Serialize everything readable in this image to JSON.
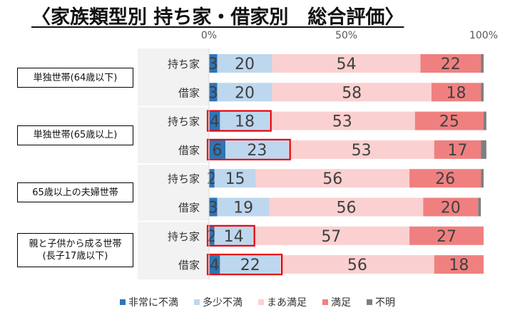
{
  "title": "〈家族類型別 持ち家・借家別　総合評価〉",
  "chart_data": {
    "type": "bar",
    "orientation": "horizontal",
    "stacked": true,
    "percent": true,
    "xlim": [
      0,
      100
    ],
    "x_ticks": [
      "0%",
      "50%",
      "100%"
    ],
    "groups": [
      {
        "label": "単独世帯(64歳以下)",
        "rows": [
          0,
          1
        ]
      },
      {
        "label": "単独世帯(65歳以上)",
        "rows": [
          2,
          3
        ]
      },
      {
        "label": "65歳以上の夫婦世帯",
        "rows": [
          4,
          5
        ]
      },
      {
        "label": "親と子供から成る世帯\n(長子17歳以下)",
        "rows": [
          6,
          7
        ]
      }
    ],
    "categories": [
      "持ち家",
      "借家",
      "持ち家",
      "借家",
      "持ち家",
      "借家",
      "持ち家",
      "借家"
    ],
    "series": [
      {
        "name": "非常に不満",
        "color": "#2e75b6",
        "values": [
          3,
          3,
          4,
          6,
          2,
          3,
          2,
          4
        ]
      },
      {
        "name": "多少不満",
        "color": "#bdd7ee",
        "values": [
          20,
          20,
          18,
          23,
          15,
          19,
          14,
          22
        ]
      },
      {
        "name": "まあ満足",
        "color": "#fbd0d0",
        "values": [
          54,
          58,
          53,
          53,
          56,
          56,
          57,
          56
        ]
      },
      {
        "name": "満足",
        "color": "#f08080",
        "values": [
          22,
          18,
          25,
          17,
          26,
          20,
          27,
          18
        ]
      },
      {
        "name": "不明",
        "color": "#7f7f7f",
        "values": [
          1,
          1,
          1,
          2,
          1,
          1,
          0,
          0
        ]
      }
    ],
    "highlighted_rows": [
      2,
      3,
      6,
      7
    ],
    "highlight_color": "#e8000b",
    "grid": false,
    "legend_position": "bottom"
  }
}
